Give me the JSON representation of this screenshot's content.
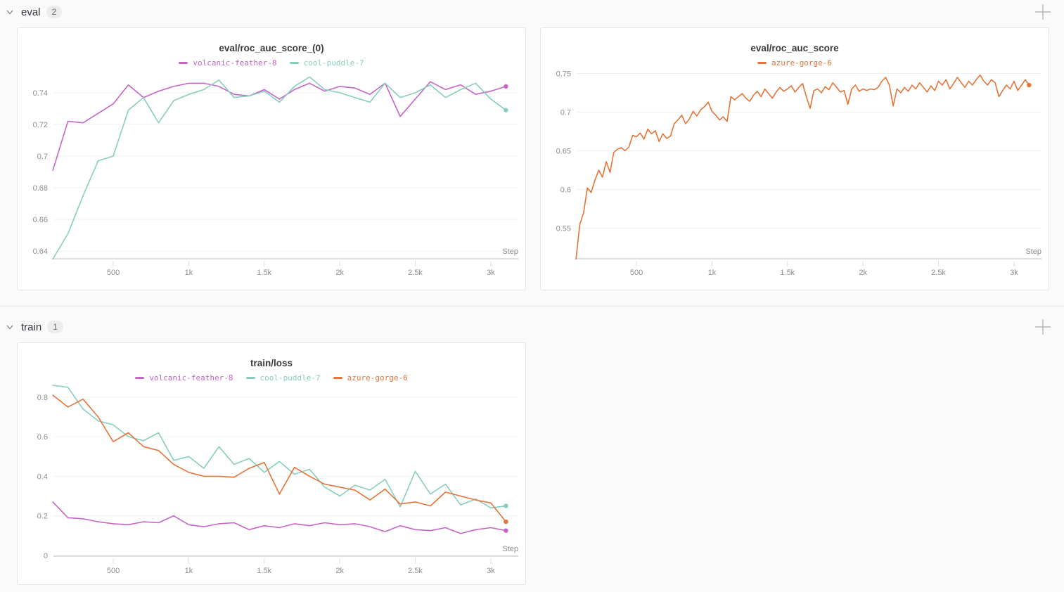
{
  "sections": [
    {
      "label": "eval",
      "count": "2"
    },
    {
      "label": "train",
      "count": "1"
    }
  ],
  "chart_data": [
    {
      "type": "line",
      "title": "eval/roc_auc_score_(0)",
      "xlabel": "Step",
      "legend_position": "top-center",
      "grid": "horizontal",
      "xlim": [
        104,
        3182
      ],
      "ylim": [
        0.6352,
        0.7524
      ],
      "yticks": [
        0.64,
        0.66,
        0.68,
        0.7,
        0.72,
        0.74
      ],
      "ytick_labels": [
        "0.64",
        "0.66",
        "0.68",
        "0.7",
        "0.72",
        "0.74"
      ],
      "xticks": [
        500,
        1000,
        1500,
        2000,
        2500,
        3000
      ],
      "xtick_labels": [
        "500",
        "1k",
        "1.5k",
        "2k",
        "2.5k",
        "3k"
      ],
      "series": [
        {
          "name": "volcanic-feather-8",
          "color": "#C565C7",
          "x_start": 100,
          "x_step": 100,
          "y": [
            0.691,
            0.722,
            0.721,
            0.727,
            0.733,
            0.745,
            0.737,
            0.741,
            0.744,
            0.746,
            0.746,
            0.744,
            0.739,
            0.738,
            0.742,
            0.736,
            0.742,
            0.746,
            0.741,
            0.744,
            0.743,
            0.739,
            0.746,
            0.725,
            0.736,
            0.747,
            0.742,
            0.745,
            0.739,
            0.741,
            0.744
          ]
        },
        {
          "name": "cool-puddle-7",
          "color": "#87CEBF",
          "x_start": 100,
          "x_step": 100,
          "y": [
            0.635,
            0.651,
            0.675,
            0.697,
            0.7,
            0.729,
            0.737,
            0.721,
            0.735,
            0.739,
            0.742,
            0.748,
            0.737,
            0.738,
            0.741,
            0.734,
            0.744,
            0.75,
            0.742,
            0.74,
            0.737,
            0.734,
            0.746,
            0.737,
            0.74,
            0.745,
            0.737,
            0.742,
            0.746,
            0.736,
            0.729
          ]
        }
      ]
    },
    {
      "type": "line",
      "title": "eval/roc_auc_score",
      "xlabel": "Step",
      "legend_position": "top-center",
      "grid": "horizontal",
      "xlim": [
        104,
        3182
      ],
      "ylim": [
        0.5105,
        0.7505
      ],
      "yticks": [
        0.55,
        0.6,
        0.65,
        0.7,
        0.75
      ],
      "ytick_labels": [
        "0.55",
        "0.6",
        "0.65",
        "0.7",
        "0.75"
      ],
      "xticks": [
        500,
        1000,
        1500,
        2000,
        2500,
        3000
      ],
      "xtick_labels": [
        "500",
        "1k",
        "1.5k",
        "2k",
        "2.5k",
        "3k"
      ],
      "series": [
        {
          "name": "azure-gorge-6",
          "color": "#E57439",
          "x_start": 100,
          "x_step": 25,
          "y": [
            0.51,
            0.555,
            0.57,
            0.602,
            0.596,
            0.612,
            0.625,
            0.616,
            0.636,
            0.622,
            0.648,
            0.652,
            0.654,
            0.65,
            0.655,
            0.67,
            0.668,
            0.673,
            0.665,
            0.678,
            0.672,
            0.676,
            0.662,
            0.672,
            0.666,
            0.669,
            0.685,
            0.69,
            0.696,
            0.685,
            0.691,
            0.701,
            0.695,
            0.703,
            0.707,
            0.713,
            0.701,
            0.696,
            0.69,
            0.694,
            0.688,
            0.72,
            0.716,
            0.72,
            0.724,
            0.718,
            0.714,
            0.722,
            0.727,
            0.72,
            0.73,
            0.724,
            0.718,
            0.726,
            0.732,
            0.727,
            0.73,
            0.734,
            0.726,
            0.732,
            0.737,
            0.72,
            0.705,
            0.728,
            0.73,
            0.725,
            0.733,
            0.729,
            0.738,
            0.732,
            0.726,
            0.728,
            0.71,
            0.73,
            0.735,
            0.727,
            0.73,
            0.728,
            0.73,
            0.729,
            0.732,
            0.74,
            0.745,
            0.735,
            0.708,
            0.73,
            0.725,
            0.732,
            0.727,
            0.735,
            0.73,
            0.738,
            0.732,
            0.726,
            0.734,
            0.728,
            0.74,
            0.735,
            0.742,
            0.73,
            0.737,
            0.745,
            0.738,
            0.732,
            0.74,
            0.735,
            0.742,
            0.748,
            0.74,
            0.735,
            0.742,
            0.738,
            0.72,
            0.728,
            0.735,
            0.73,
            0.74,
            0.728,
            0.735,
            0.742,
            0.735
          ]
        }
      ]
    },
    {
      "type": "line",
      "title": "train/loss",
      "xlabel": "Step",
      "legend_position": "top-center",
      "grid": "horizontal",
      "xlim": [
        104,
        3182
      ],
      "ylim": [
        -0.004,
        0.86
      ],
      "yticks": [
        0,
        0.2,
        0.4,
        0.6,
        0.8
      ],
      "ytick_labels": [
        "0",
        "0.2",
        "0.4",
        "0.6",
        "0.8"
      ],
      "xticks": [
        500,
        1000,
        1500,
        2000,
        2500,
        3000
      ],
      "xtick_labels": [
        "500",
        "1k",
        "1.5k",
        "2k",
        "2.5k",
        "3k"
      ],
      "series": [
        {
          "name": "volcanic-feather-8",
          "color": "#C565C7",
          "x_start": 100,
          "x_step": 100,
          "y": [
            0.27,
            0.19,
            0.185,
            0.17,
            0.16,
            0.155,
            0.17,
            0.165,
            0.2,
            0.155,
            0.145,
            0.16,
            0.165,
            0.13,
            0.15,
            0.14,
            0.16,
            0.15,
            0.165,
            0.155,
            0.16,
            0.145,
            0.12,
            0.15,
            0.13,
            0.125,
            0.14,
            0.11,
            0.13,
            0.14,
            0.125
          ]
        },
        {
          "name": "cool-puddle-7",
          "color": "#87CEBF",
          "x_start": 100,
          "x_step": 100,
          "y": [
            0.86,
            0.85,
            0.74,
            0.68,
            0.66,
            0.6,
            0.58,
            0.62,
            0.48,
            0.5,
            0.44,
            0.55,
            0.46,
            0.49,
            0.42,
            0.475,
            0.41,
            0.435,
            0.345,
            0.3,
            0.355,
            0.33,
            0.385,
            0.245,
            0.425,
            0.31,
            0.36,
            0.255,
            0.285,
            0.24,
            0.25
          ]
        },
        {
          "name": "azure-gorge-6",
          "color": "#E57439",
          "x_start": 100,
          "x_step": 100,
          "y": [
            0.81,
            0.75,
            0.79,
            0.7,
            0.575,
            0.62,
            0.55,
            0.53,
            0.46,
            0.42,
            0.4,
            0.4,
            0.395,
            0.44,
            0.47,
            0.31,
            0.445,
            0.4,
            0.36,
            0.345,
            0.33,
            0.28,
            0.335,
            0.26,
            0.27,
            0.25,
            0.32,
            0.3,
            0.28,
            0.265,
            0.17
          ]
        }
      ]
    }
  ]
}
